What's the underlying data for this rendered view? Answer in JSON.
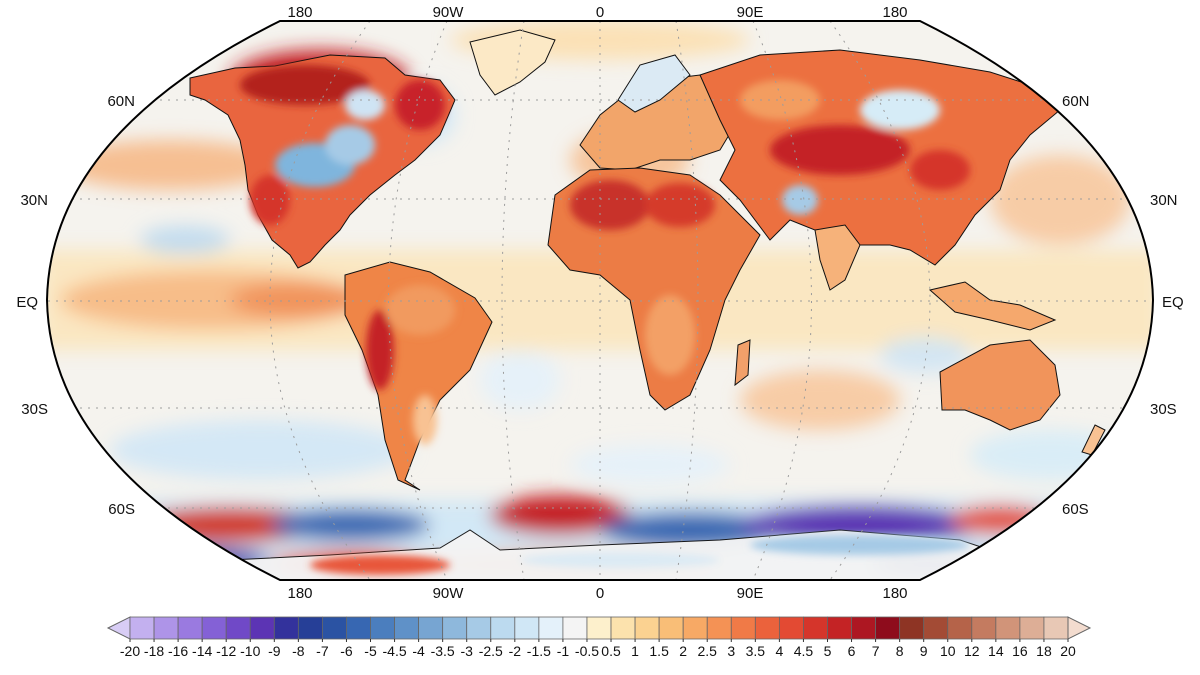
{
  "map": {
    "projection": "Robinson",
    "central_longitude": 0,
    "grid": true,
    "coastlines": true,
    "country_borders": true,
    "lon_labels": [
      "180",
      "90W",
      "0",
      "90E",
      "180"
    ],
    "lat_labels": [
      "60N",
      "30N",
      "EQ",
      "30S",
      "60S"
    ],
    "colors": {
      "background_ocean": "#f4f4f4",
      "near_zero": "#f5f5f5",
      "warm_light": "#fce3b0",
      "warm_mid": "#f7a163",
      "warm_strong": "#e2452e",
      "warm_extreme": "#b01a24",
      "cool_light": "#d6ecf7",
      "cool_mid": "#7fb5dd",
      "cool_strong": "#3a63b5",
      "cool_extreme": "#5a2fa8",
      "coastline": "#111111"
    }
  },
  "colorbar": {
    "position": "bottom",
    "extend": "both",
    "tick_labels": [
      "-20",
      "-18",
      "-16",
      "-14",
      "-12",
      "-10",
      "-9",
      "-8",
      "-7",
      "-6",
      "-5",
      "-4.5",
      "-4",
      "-3.5",
      "-3",
      "-2.5",
      "-2",
      "-1.5",
      "-1",
      "-0.5",
      "0.5",
      "1",
      "1.5",
      "2",
      "2.5",
      "3",
      "3.5",
      "4",
      "4.5",
      "5",
      "6",
      "7",
      "8",
      "9",
      "10",
      "12",
      "14",
      "16",
      "18",
      "20"
    ],
    "colors": [
      "#d8cdf5",
      "#c3b0ef",
      "#ae94e8",
      "#9a7ae0",
      "#8461d6",
      "#7049c7",
      "#5c34b4",
      "#33329c",
      "#263f97",
      "#2b53a3",
      "#3767b2",
      "#4b7ebe",
      "#5f91c8",
      "#77a5d2",
      "#8eb8dc",
      "#a6cae6",
      "#bcdaef",
      "#d0e7f6",
      "#e4f1fa",
      "#f4f4f4",
      "#fdf0cc",
      "#fce2ad",
      "#fbd291",
      "#f9be77",
      "#f7a965",
      "#f49255",
      "#f07a47",
      "#eb623c",
      "#e34a33",
      "#d5352b",
      "#c42325",
      "#ad1722",
      "#8e0c1c",
      "#8e3424",
      "#a34b35",
      "#b56349",
      "#c47b60",
      "#d19479",
      "#ddae96",
      "#e8c8b5",
      "#f3dccf"
    ]
  }
}
